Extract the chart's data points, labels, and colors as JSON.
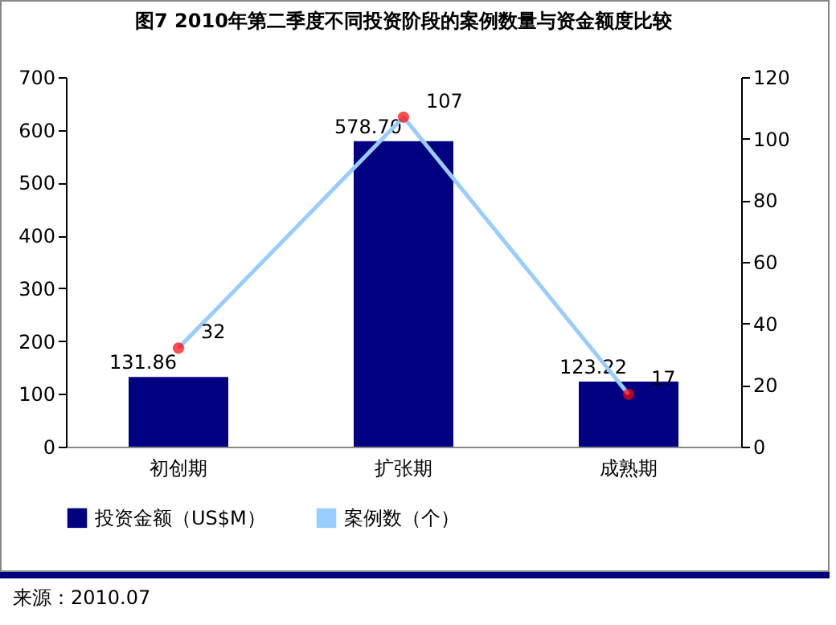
{
  "chart_data": {
    "type": "bar",
    "title": "图7  2010年第二季度不同投资阶段的案例数量与资金额度比较",
    "categories": [
      "初创期",
      "扩张期",
      "成熟期"
    ],
    "series": [
      {
        "name": "投资金额（US$M）",
        "color": "#000080",
        "values": [
          131.86,
          578.7,
          123.22
        ],
        "value_labels": [
          "131.86",
          "578.70",
          "123.22"
        ]
      },
      {
        "name": "案例数（个）",
        "type": "line",
        "axis": "y2",
        "color": "#99ccff",
        "colors": [
          "#ff0000",
          "#ff0000",
          "#ff0000"
        ],
        "marker": "circle",
        "values": [
          32,
          107,
          17
        ],
        "value_labels": [
          "32",
          "107",
          "17"
        ]
      }
    ],
    "ylim": [
      0,
      700
    ],
    "yticks": [
      0,
      100,
      200,
      300,
      400,
      500,
      600,
      700
    ],
    "y2lim": [
      0,
      120
    ],
    "y2ticks": [
      0,
      20,
      40,
      60,
      80,
      100,
      120
    ],
    "grid": false,
    "legend": "bottom",
    "annotations": [
      "来源：2010.07"
    ]
  }
}
